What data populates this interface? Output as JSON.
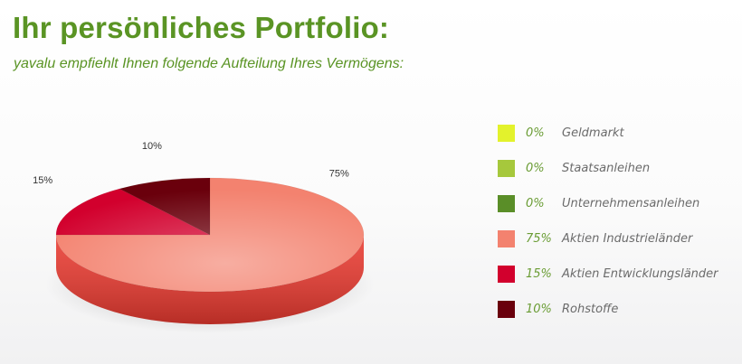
{
  "header": {
    "title": "Ihr persönliches Portfolio:",
    "subtitle": "yavalu empfiehlt Ihnen folgende Aufteilung Ihres Vermögens:"
  },
  "chart_data": {
    "type": "pie",
    "style": "3d",
    "legend_position": "right",
    "slices": [
      {
        "label": "Geldmarkt",
        "value": 0,
        "pct_label": "0%",
        "color": "#e3f22c"
      },
      {
        "label": "Staatsanleihen",
        "value": 0,
        "pct_label": "0%",
        "color": "#a6c83c"
      },
      {
        "label": "Unternehmensanleihen",
        "value": 0,
        "pct_label": "0%",
        "color": "#5a8e28"
      },
      {
        "label": "Aktien Industrieländer",
        "value": 75,
        "pct_label": "75%",
        "color": "#f3826f"
      },
      {
        "label": "Aktien Entwicklungsländer",
        "value": 15,
        "pct_label": "15%",
        "color": "#d2002d"
      },
      {
        "label": "Rohstoffe",
        "value": 10,
        "pct_label": "10%",
        "color": "#6a000c"
      }
    ],
    "wall_colors": {
      "Aktien Industrieländer": "#ea3a30",
      "Aktien Entwicklungsländer": "#9a0020",
      "Rohstoffe": "#3a0006"
    }
  }
}
